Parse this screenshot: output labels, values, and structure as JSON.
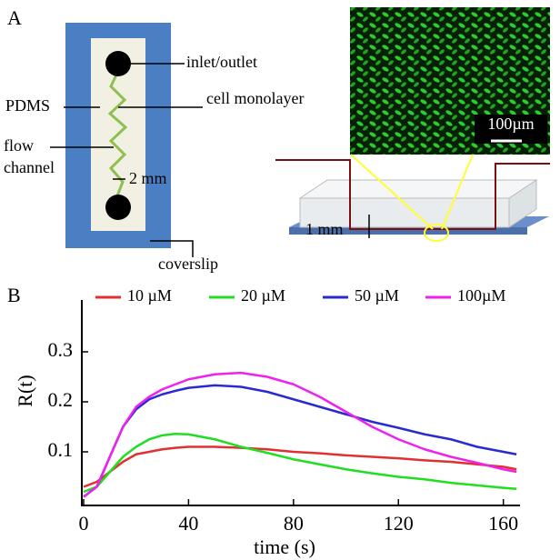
{
  "panel_a": {
    "label": "A",
    "inlet": "inlet/outlet",
    "pdms": "PDMS",
    "monolayer": "cell monolayer",
    "flow_1": "flow",
    "flow_2": "channel",
    "width": "2 mm",
    "coverslip": "coverslip",
    "scale_bar": "100µm",
    "height": "1 mm"
  },
  "chart_data": {
    "type": "line",
    "panel_label": "B",
    "xlabel": "time (s)",
    "ylabel": "R(t)",
    "x": [
      0,
      5,
      10,
      15,
      20,
      25,
      30,
      35,
      40,
      50,
      60,
      70,
      80,
      90,
      100,
      110,
      120,
      130,
      140,
      150,
      160,
      165
    ],
    "series": [
      {
        "name": "10 µM",
        "color": "#e03030",
        "values": [
          0.03,
          0.04,
          0.06,
          0.08,
          0.095,
          0.1,
          0.105,
          0.108,
          0.11,
          0.11,
          0.108,
          0.105,
          0.1,
          0.097,
          0.093,
          0.09,
          0.087,
          0.083,
          0.08,
          0.075,
          0.07,
          0.065
        ]
      },
      {
        "name": "20 µM",
        "color": "#22dd22",
        "values": [
          0.02,
          0.03,
          0.06,
          0.09,
          0.11,
          0.125,
          0.133,
          0.136,
          0.135,
          0.125,
          0.11,
          0.098,
          0.085,
          0.075,
          0.065,
          0.057,
          0.05,
          0.045,
          0.038,
          0.033,
          0.028,
          0.026
        ]
      },
      {
        "name": "50 µM",
        "color": "#2a2ad0",
        "values": [
          0.01,
          0.03,
          0.09,
          0.15,
          0.185,
          0.205,
          0.215,
          0.222,
          0.228,
          0.233,
          0.23,
          0.22,
          0.205,
          0.19,
          0.175,
          0.16,
          0.148,
          0.135,
          0.125,
          0.11,
          0.1,
          0.095
        ]
      },
      {
        "name": "100µM",
        "color": "#ee22ee",
        "values": [
          0.01,
          0.03,
          0.09,
          0.15,
          0.19,
          0.21,
          0.225,
          0.235,
          0.245,
          0.255,
          0.258,
          0.25,
          0.235,
          0.21,
          0.18,
          0.15,
          0.125,
          0.105,
          0.09,
          0.078,
          0.065,
          0.06
        ]
      }
    ],
    "xlim": [
      0,
      166
    ],
    "xticks": [
      0,
      40,
      80,
      120,
      160
    ],
    "ylim": [
      0,
      0.4
    ],
    "yticks": [
      0.1,
      0.2,
      0.3
    ],
    "legend": "top"
  }
}
